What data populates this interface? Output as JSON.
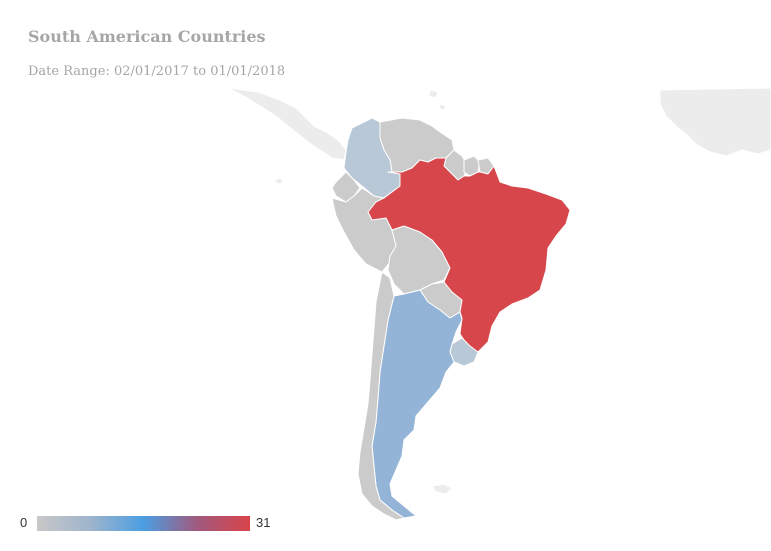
{
  "title": "South American Countries",
  "subtitle": "Date Range: 02/01/2017 to 01/01/2018",
  "legend": {
    "min_label": "0",
    "max_label": "31",
    "colors": [
      "#c8c8c8",
      "#9fb4cc",
      "#4b9ee2",
      "#a05a7e",
      "#d9434a"
    ]
  },
  "colors": {
    "no_data": "#cbcbcb",
    "low": "#b8c8d6",
    "mid_low": "#93b4d6",
    "high": "#d6464b",
    "background_land": "#ececec",
    "border": "#ffffff"
  },
  "regions": [
    {
      "name": "Brazil",
      "value": 31,
      "color": "#d6464b"
    },
    {
      "name": "Argentina",
      "value": 6,
      "color": "#93b4d6"
    },
    {
      "name": "Colombia",
      "value": 3,
      "color": "#b8c8d6"
    },
    {
      "name": "Uruguay",
      "value": 3,
      "color": "#b8c8d6"
    },
    {
      "name": "Venezuela",
      "value": 0,
      "color": "#cbcbcb"
    },
    {
      "name": "Ecuador",
      "value": 0,
      "color": "#cbcbcb"
    },
    {
      "name": "Peru",
      "value": 0,
      "color": "#cbcbcb"
    },
    {
      "name": "Bolivia",
      "value": 0,
      "color": "#cbcbcb"
    },
    {
      "name": "Paraguay",
      "value": 0,
      "color": "#cbcbcb"
    },
    {
      "name": "Chile",
      "value": 0,
      "color": "#cbcbcb"
    },
    {
      "name": "Guyana",
      "value": 0,
      "color": "#cbcbcb"
    },
    {
      "name": "Suriname",
      "value": 0,
      "color": "#cbcbcb"
    },
    {
      "name": "French Guiana",
      "value": 0,
      "color": "#cbcbcb"
    }
  ]
}
